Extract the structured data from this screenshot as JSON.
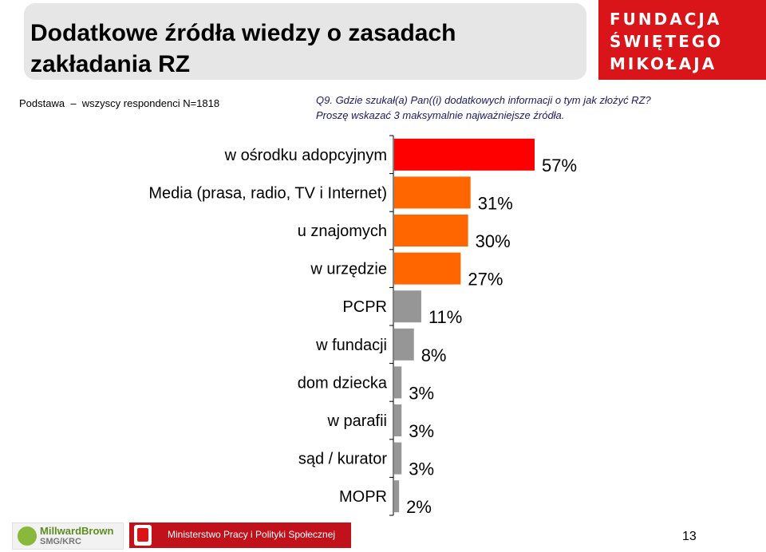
{
  "header": {
    "title_line1": "Dodatkowe źródła wiedzy o zasadach",
    "title_line2": "zakładania RZ",
    "logo_line1": "FUNDACJA",
    "logo_line2": "ŚWIĘTEGO",
    "logo_line3": "MIKOŁAJA"
  },
  "base": "Podstawa  –  wszyscy respondenci N=1818",
  "question": {
    "line1": "Q9. Gdzie szukał(a) Pan((i) dodatkowych informacji o tym jak złożyć RZ?",
    "line2": "Proszę wskazać 3 maksymalnie najważniejsze źródła."
  },
  "chart_data": {
    "type": "bar",
    "orientation": "horizontal",
    "categories": [
      "w ośrodku adopcyjnym",
      "Media (prasa, radio, TV i Internet)",
      "u znajomych",
      "w urzędzie",
      "PCPR",
      "w fundacji",
      "dom dziecka",
      "w parafii",
      "sąd / kurator",
      "MOPR"
    ],
    "values": [
      57,
      31,
      30,
      27,
      11,
      8,
      3,
      3,
      3,
      2
    ],
    "value_labels": [
      "57%",
      "31%",
      "30%",
      "27%",
      "11%",
      "8%",
      "3%",
      "3%",
      "3%",
      "2%"
    ],
    "bar_colors": [
      "#ff0000",
      "#ff6600",
      "#ff6600",
      "#ff6600",
      "#969696",
      "#969696",
      "#969696",
      "#969696",
      "#969696",
      "#969696"
    ],
    "unit": "%",
    "grid": false
  },
  "footer": {
    "millward_name": "MillwardBrown",
    "millward_sub": "SMG/KRC",
    "ministry": "Ministerstwo Pracy i Polityki Społecznej",
    "page_number": "13"
  }
}
